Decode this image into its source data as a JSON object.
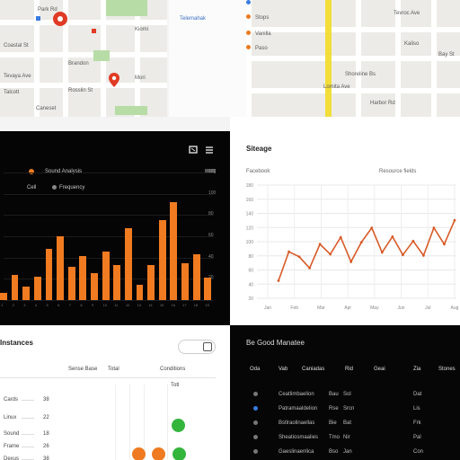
{
  "map_left": {
    "labels": [
      "Coastal St",
      "Park Rd",
      "Tevaya Ave",
      "Brandon",
      "Kiomi",
      "Rosslin St",
      "Talcott",
      "Mori",
      "Caneset"
    ],
    "accent": "#e03b24"
  },
  "map_right": {
    "header": "Telemahak",
    "list": [
      "Stops",
      "Vanilla",
      "Paso"
    ],
    "labels": [
      "Tevroc Ave",
      "Shoreline Bs",
      "Kaliso",
      "Lomita Ave",
      "Bay St",
      "Harbor Rd"
    ],
    "highway_color": "#f2dd3a"
  },
  "bar_chart": {
    "title": "Sound Analysis",
    "legend": [
      "Cell",
      "Frequency"
    ],
    "y_ticks": [
      "120",
      "100",
      "80",
      "60",
      "40",
      "20",
      "0"
    ],
    "accent": "#f07b21",
    "chart_data": {
      "type": "bar",
      "categories": [
        "1",
        "2",
        "3",
        "4",
        "5",
        "6",
        "7",
        "8",
        "9",
        "10",
        "11",
        "12",
        "13",
        "14",
        "15",
        "16",
        "17",
        "18",
        "19"
      ],
      "values": [
        7,
        24,
        13,
        22,
        48,
        60,
        31,
        41,
        25,
        46,
        33,
        68,
        14,
        33,
        75,
        92,
        35,
        43,
        21
      ],
      "ylim": [
        0,
        120
      ]
    }
  },
  "line_chart": {
    "title": "Siteage",
    "sub_left": "Facebook",
    "sub_right": "Resource fields",
    "y_ticks": [
      "180",
      "160",
      "140",
      "120",
      "100",
      "80",
      "60",
      "40",
      "20"
    ],
    "x_ticks": [
      "Jan",
      "Feb",
      "Mar",
      "Apr",
      "May",
      "Jun",
      "Jul",
      "Aug"
    ],
    "accent": "#d85a27",
    "chart_data": {
      "type": "line",
      "x": [
        1,
        2,
        3,
        4,
        5,
        6,
        7,
        8,
        9,
        10,
        11,
        12,
        13,
        14,
        15,
        16,
        17,
        18
      ],
      "values": [
        28,
        74,
        66,
        48,
        86,
        70,
        97,
        58,
        89,
        112,
        73,
        98,
        69,
        91,
        68,
        112,
        86,
        124
      ],
      "ylim": [
        0,
        180
      ]
    }
  },
  "dot_panel": {
    "title": "Instances",
    "headers": [
      "Sense Base",
      "Total",
      "Conditions"
    ],
    "row_labels": [
      "Cards",
      "Linux",
      "Sound",
      "Frame",
      "Dexus"
    ],
    "row_values": [
      "38",
      "22",
      "18",
      "26",
      "38"
    ],
    "col_tag": "Totl",
    "dot_colors": {
      "green": "#33b53c",
      "orange": "#ef7a1f"
    }
  },
  "table": {
    "title": "Be Good Manatee",
    "headers": [
      "Oda",
      "Vab",
      "Caniadas",
      "Rid",
      "Geai",
      "Zia",
      "Stones"
    ],
    "rows": [
      [
        "Ceatlimbaelion",
        "Bau",
        "Sol"
      ],
      [
        "Patramaaldelion",
        "Rse",
        "Srcn"
      ],
      [
        "Bstlraolinaellas",
        "Bie",
        "Bat"
      ],
      [
        "Sheatiosmaalies",
        "Tmo",
        "Nir"
      ],
      [
        "Gaeslinaenlica",
        "Bso",
        "Jan"
      ]
    ],
    "right_col": [
      "Dat",
      "Lis",
      "Frk",
      "Pal",
      "Con"
    ]
  }
}
